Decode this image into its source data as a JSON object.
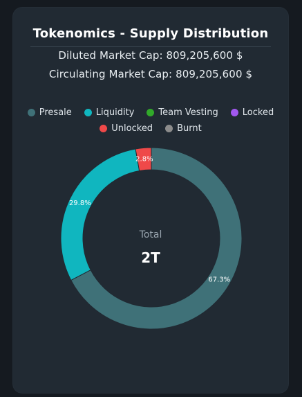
{
  "title": "Tokenomics - Supply Distribution",
  "diluted_market_cap": "Diluted Market Cap: 809,205,600 $",
  "circulating_market_cap": "Circulating Market Cap: 809,205,600 $",
  "legend": [
    {
      "name": "Presale",
      "color": "#3f7178"
    },
    {
      "name": "Liquidity",
      "color": "#10b6bf"
    },
    {
      "name": "Team Vesting",
      "color": "#31a92a"
    },
    {
      "name": "Locked",
      "color": "#a258ef"
    },
    {
      "name": "Unlocked",
      "color": "#ef4949"
    },
    {
      "name": "Burnt",
      "color": "#8c8c8c"
    }
  ],
  "center_label": "Total",
  "center_value": "2T",
  "chart_data": {
    "type": "pie",
    "style": "donut",
    "categories": [
      "Presale",
      "Liquidity",
      "Team Vesting",
      "Locked",
      "Unlocked",
      "Burnt"
    ],
    "values": [
      67.3,
      29.8,
      0,
      0,
      2.8,
      0
    ],
    "labels": [
      "67.3%",
      "29.8%",
      "",
      "",
      "2.8%",
      ""
    ],
    "colors": [
      "#3f7178",
      "#10b6bf",
      "#31a92a",
      "#a258ef",
      "#ef4949",
      "#8c8c8c"
    ],
    "legend_position": "top"
  }
}
